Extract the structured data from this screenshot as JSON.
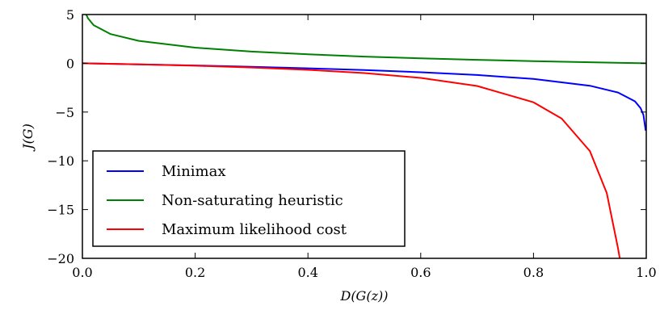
{
  "chart_data": {
    "type": "line",
    "title": "",
    "xlabel": "D(G(z))",
    "ylabel": "J(G)",
    "xlim": [
      0.0,
      1.0
    ],
    "ylim": [
      -20,
      5
    ],
    "xticks": [
      "0.0",
      "0.2",
      "0.4",
      "0.6",
      "0.8",
      "1.0"
    ],
    "yticks": [
      "5",
      "0",
      "−5",
      "−10",
      "−15",
      "−20"
    ],
    "grid": false,
    "legend_position": "lower-left",
    "series": [
      {
        "name": "Minimax",
        "color": "#0000ff",
        "x": [
          0.0,
          0.1,
          0.2,
          0.3,
          0.4,
          0.5,
          0.6,
          0.7,
          0.8,
          0.9,
          0.95,
          0.98,
          0.99,
          0.995,
          0.999
        ],
        "y": [
          0.0,
          -0.11,
          -0.22,
          -0.36,
          -0.51,
          -0.69,
          -0.92,
          -1.2,
          -1.61,
          -2.3,
          -3.0,
          -3.9,
          -4.6,
          -5.3,
          -6.9
        ]
      },
      {
        "name": "Non-saturating heuristic",
        "color": "#008000",
        "x": [
          0.0067,
          0.01,
          0.02,
          0.05,
          0.1,
          0.2,
          0.3,
          0.4,
          0.5,
          0.6,
          0.7,
          0.8,
          0.9,
          1.0
        ],
        "y": [
          5.0,
          4.6,
          3.9,
          3.0,
          2.3,
          1.61,
          1.2,
          0.92,
          0.69,
          0.51,
          0.36,
          0.22,
          0.11,
          0.0
        ]
      },
      {
        "name": "Maximum likelihood cost",
        "color": "#ff0000",
        "x": [
          0.0,
          0.1,
          0.2,
          0.3,
          0.4,
          0.5,
          0.6,
          0.7,
          0.8,
          0.85,
          0.9,
          0.93,
          0.95,
          0.953
        ],
        "y": [
          0.0,
          -0.11,
          -0.25,
          -0.43,
          -0.67,
          -1.0,
          -1.5,
          -2.33,
          -4.0,
          -5.67,
          -9.0,
          -13.3,
          -19.0,
          -20.0
        ]
      }
    ]
  }
}
